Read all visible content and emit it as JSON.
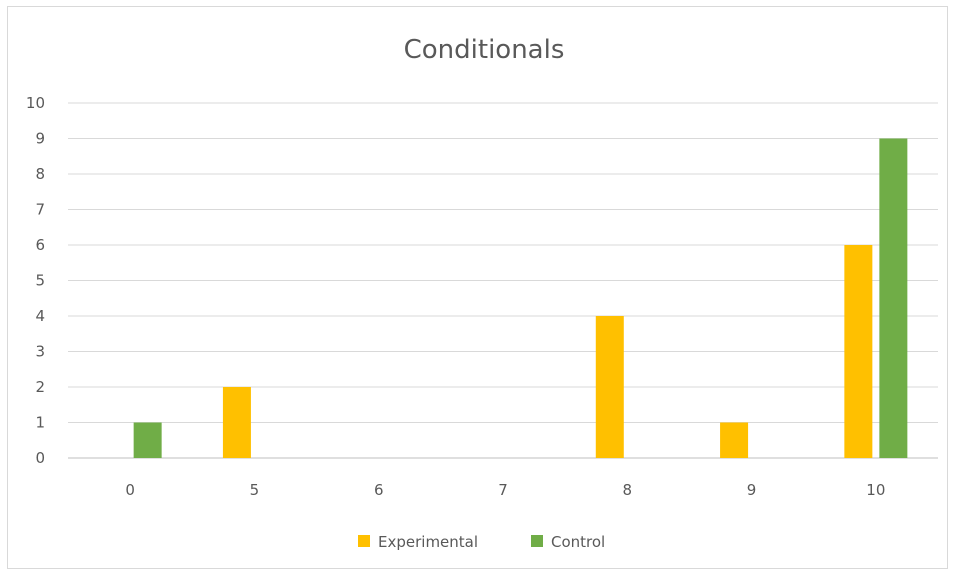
{
  "chart_data": {
    "type": "bar",
    "title": "Conditionals",
    "xlabel": "",
    "ylabel": "",
    "categories": [
      "0",
      "5",
      "6",
      "7",
      "8",
      "9",
      "10"
    ],
    "ylim": [
      0,
      10
    ],
    "yticks": [
      0,
      1,
      2,
      3,
      4,
      5,
      6,
      7,
      8,
      9,
      10
    ],
    "grid": true,
    "legend_position": "bottom",
    "series": [
      {
        "name": "Experimental",
        "color": "#FFC000",
        "values": [
          0,
          2,
          0,
          0,
          4,
          1,
          6
        ]
      },
      {
        "name": "Control",
        "color": "#70AD47",
        "values": [
          1,
          0,
          0,
          0,
          0,
          0,
          9
        ]
      }
    ]
  }
}
